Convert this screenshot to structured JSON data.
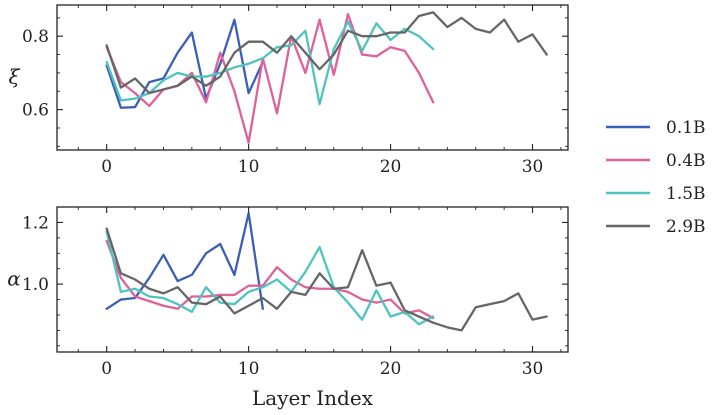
{
  "chart_data": [
    {
      "type": "line",
      "ylabel": "ξ",
      "xlabel": "",
      "xlim": [
        -3.5,
        32.5
      ],
      "ylim": [
        0.49,
        0.885
      ],
      "xticks": [
        0,
        10,
        20,
        30
      ],
      "xtick_labels": [
        "0",
        "10",
        "20",
        "30"
      ],
      "yticks": [
        0.6,
        0.8
      ],
      "ytick_labels": [
        "0.6",
        "0.8"
      ],
      "series": [
        {
          "name": "0.1B",
          "color": "#3b5fb5",
          "x": [
            0,
            1,
            2,
            3,
            4,
            5,
            6,
            7,
            8,
            9,
            10,
            11
          ],
          "y": [
            0.72,
            0.605,
            0.607,
            0.675,
            0.685,
            0.755,
            0.81,
            0.63,
            0.725,
            0.845,
            0.645,
            0.73
          ]
        },
        {
          "name": "0.4B",
          "color": "#e0609a",
          "x": [
            0,
            1,
            2,
            3,
            4,
            5,
            6,
            7,
            8,
            9,
            10,
            11,
            12,
            13,
            14,
            15,
            16,
            17,
            18,
            19,
            20,
            21,
            22,
            23
          ],
          "y": [
            0.77,
            0.675,
            0.645,
            0.61,
            0.655,
            0.665,
            0.7,
            0.62,
            0.755,
            0.65,
            0.51,
            0.74,
            0.59,
            0.8,
            0.7,
            0.845,
            0.695,
            0.86,
            0.75,
            0.745,
            0.77,
            0.76,
            0.7,
            0.62
          ]
        },
        {
          "name": "1.5B",
          "color": "#4fc3bf",
          "x": [
            0,
            1,
            2,
            3,
            4,
            5,
            6,
            7,
            8,
            9,
            10,
            11,
            12,
            13,
            14,
            15,
            16,
            17,
            18,
            19,
            20,
            21,
            22,
            23
          ],
          "y": [
            0.73,
            0.625,
            0.63,
            0.645,
            0.68,
            0.7,
            0.69,
            0.69,
            0.7,
            0.715,
            0.725,
            0.74,
            0.77,
            0.775,
            0.815,
            0.615,
            0.765,
            0.84,
            0.76,
            0.835,
            0.79,
            0.82,
            0.8,
            0.765
          ]
        },
        {
          "name": "2.9B",
          "color": "#666666",
          "x": [
            0,
            1,
            2,
            3,
            4,
            5,
            6,
            7,
            8,
            9,
            10,
            11,
            12,
            13,
            14,
            15,
            16,
            17,
            18,
            19,
            20,
            21,
            22,
            23,
            24,
            25,
            26,
            27,
            28,
            29,
            30,
            31
          ],
          "y": [
            0.775,
            0.66,
            0.685,
            0.645,
            0.655,
            0.665,
            0.69,
            0.665,
            0.69,
            0.755,
            0.785,
            0.785,
            0.755,
            0.8,
            0.755,
            0.71,
            0.75,
            0.815,
            0.8,
            0.8,
            0.81,
            0.81,
            0.855,
            0.865,
            0.825,
            0.85,
            0.82,
            0.81,
            0.845,
            0.785,
            0.805,
            0.75
          ]
        }
      ]
    },
    {
      "type": "line",
      "ylabel": "α",
      "xlabel": "Layer Index",
      "xlim": [
        -3.5,
        32.5
      ],
      "ylim": [
        0.78,
        1.25
      ],
      "xticks": [
        0,
        10,
        20,
        30
      ],
      "xtick_labels": [
        "0",
        "10",
        "20",
        "30"
      ],
      "yticks": [
        1.0,
        1.2
      ],
      "ytick_labels": [
        "1.0",
        "1.2"
      ],
      "series": [
        {
          "name": "0.1B",
          "color": "#3b5fb5",
          "x": [
            0,
            1,
            2,
            3,
            4,
            5,
            6,
            7,
            8,
            9,
            10,
            11
          ],
          "y": [
            0.92,
            0.95,
            0.955,
            1.02,
            1.095,
            1.01,
            1.03,
            1.1,
            1.13,
            1.03,
            1.23,
            0.92
          ]
        },
        {
          "name": "0.4B",
          "color": "#e0609a",
          "x": [
            0,
            1,
            2,
            3,
            4,
            5,
            6,
            7,
            8,
            9,
            10,
            11,
            12,
            13,
            14,
            15,
            16,
            17,
            18,
            19,
            20,
            21,
            22,
            23
          ],
          "y": [
            1.14,
            1.02,
            0.96,
            0.945,
            0.93,
            0.92,
            0.96,
            0.96,
            0.965,
            0.965,
            0.995,
            0.995,
            1.055,
            1.015,
            0.99,
            0.985,
            0.985,
            0.975,
            0.95,
            0.94,
            0.95,
            0.905,
            0.915,
            0.89
          ]
        },
        {
          "name": "1.5B",
          "color": "#4fc3bf",
          "x": [
            0,
            1,
            2,
            3,
            4,
            5,
            6,
            7,
            8,
            9,
            10,
            11,
            12,
            13,
            14,
            15,
            16,
            17,
            18,
            19,
            20,
            21,
            22,
            23
          ],
          "y": [
            1.17,
            0.975,
            0.985,
            0.96,
            0.955,
            0.935,
            0.91,
            0.99,
            0.94,
            0.935,
            0.975,
            0.99,
            1.015,
            0.975,
            1.04,
            1.12,
            0.99,
            0.94,
            0.885,
            0.98,
            0.895,
            0.91,
            0.87,
            0.895
          ]
        },
        {
          "name": "2.9B",
          "color": "#666666",
          "x": [
            0,
            1,
            2,
            3,
            4,
            5,
            6,
            7,
            8,
            9,
            10,
            11,
            12,
            13,
            14,
            15,
            16,
            17,
            18,
            19,
            20,
            21,
            22,
            23,
            24,
            25,
            26,
            27,
            28,
            29,
            30,
            31
          ],
          "y": [
            1.18,
            1.035,
            1.015,
            0.985,
            0.97,
            0.99,
            0.94,
            0.935,
            0.96,
            0.905,
            0.93,
            0.955,
            0.92,
            0.975,
            0.965,
            1.035,
            0.985,
            0.99,
            1.11,
            0.995,
            1.005,
            0.915,
            0.895,
            0.875,
            0.86,
            0.85,
            0.925,
            0.935,
            0.945,
            0.97,
            0.885,
            0.895
          ]
        }
      ]
    }
  ],
  "legend": {
    "placement": "right",
    "entries": [
      {
        "label": "0.1B",
        "color": "#3b5fb5"
      },
      {
        "label": "0.4B",
        "color": "#e0609a"
      },
      {
        "label": "1.5B",
        "color": "#4fc3bf"
      },
      {
        "label": "2.9B",
        "color": "#666666"
      }
    ]
  }
}
